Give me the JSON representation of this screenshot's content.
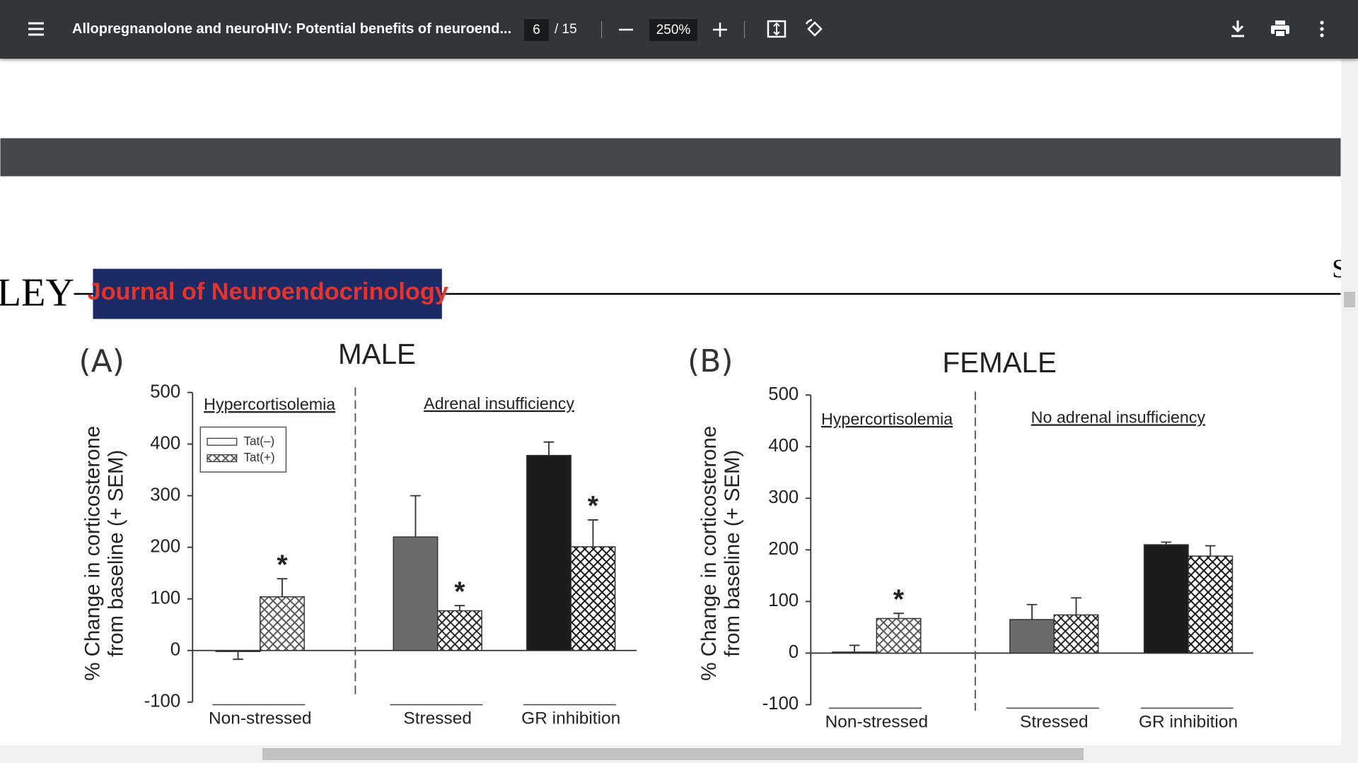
{
  "toolbar": {
    "title": "Allopregnanolone and neuroHIV: Potential benefits of neuroend...",
    "page": "6",
    "page_total": "/ 15",
    "zoom": "250%"
  },
  "document": {
    "publisher_fragment": "LEY",
    "journal": "Journal of Neuroendocrinology",
    "edge_fragment": "S"
  },
  "chart_data": [
    {
      "type": "bar",
      "panel": "(A)",
      "title": "MALE",
      "ylabel": [
        "% Change in corticosterone",
        "from baseline (+ SEM)"
      ],
      "sections": [
        "Hypercortisolemia",
        "Adrenal insufficiency"
      ],
      "categories": [
        "Non-stressed",
        "Stressed",
        "GR inhibition"
      ],
      "series": [
        {
          "name": "Tat(–)",
          "color": [
            "#ffffff",
            "#6b6b6b",
            "#1c1c1c"
          ],
          "values": [
            -2,
            220,
            378
          ],
          "errors": [
            15,
            80,
            26
          ]
        },
        {
          "name": "Tat(+)",
          "hatch": true,
          "color": [
            "#555555",
            "#222222",
            "#111111"
          ],
          "values": [
            104,
            77,
            201
          ],
          "errors": [
            35,
            10,
            52
          ],
          "markers": [
            "*",
            "*",
            "*"
          ]
        }
      ],
      "ylim": [
        -100,
        500
      ],
      "yticks": [
        -100,
        0,
        100,
        200,
        300,
        400,
        500
      ],
      "legend": true
    },
    {
      "type": "bar",
      "panel": "(B)",
      "title": "FEMALE",
      "ylabel": [
        "% Change in corticosterone",
        "from baseline (+ SEM)"
      ],
      "sections": [
        "Hypercortisolemia",
        "No adrenal insufficiency"
      ],
      "categories": [
        "Non-stressed",
        "Stressed",
        "GR inhibition"
      ],
      "series": [
        {
          "color": [
            "#ffffff",
            "#6b6b6b",
            "#1c1c1c"
          ],
          "values": [
            2,
            65,
            210
          ],
          "errors": [
            13,
            29,
            5
          ]
        },
        {
          "hatch": true,
          "color": [
            "#555555",
            "#222222",
            "#111111"
          ],
          "values": [
            67,
            74,
            188
          ],
          "errors": [
            10,
            33,
            20
          ],
          "markers": [
            "*",
            null,
            null
          ]
        }
      ],
      "ylim": [
        -100,
        500
      ],
      "yticks": [
        -100,
        0,
        100,
        200,
        300,
        400,
        500
      ],
      "legend": false
    }
  ]
}
